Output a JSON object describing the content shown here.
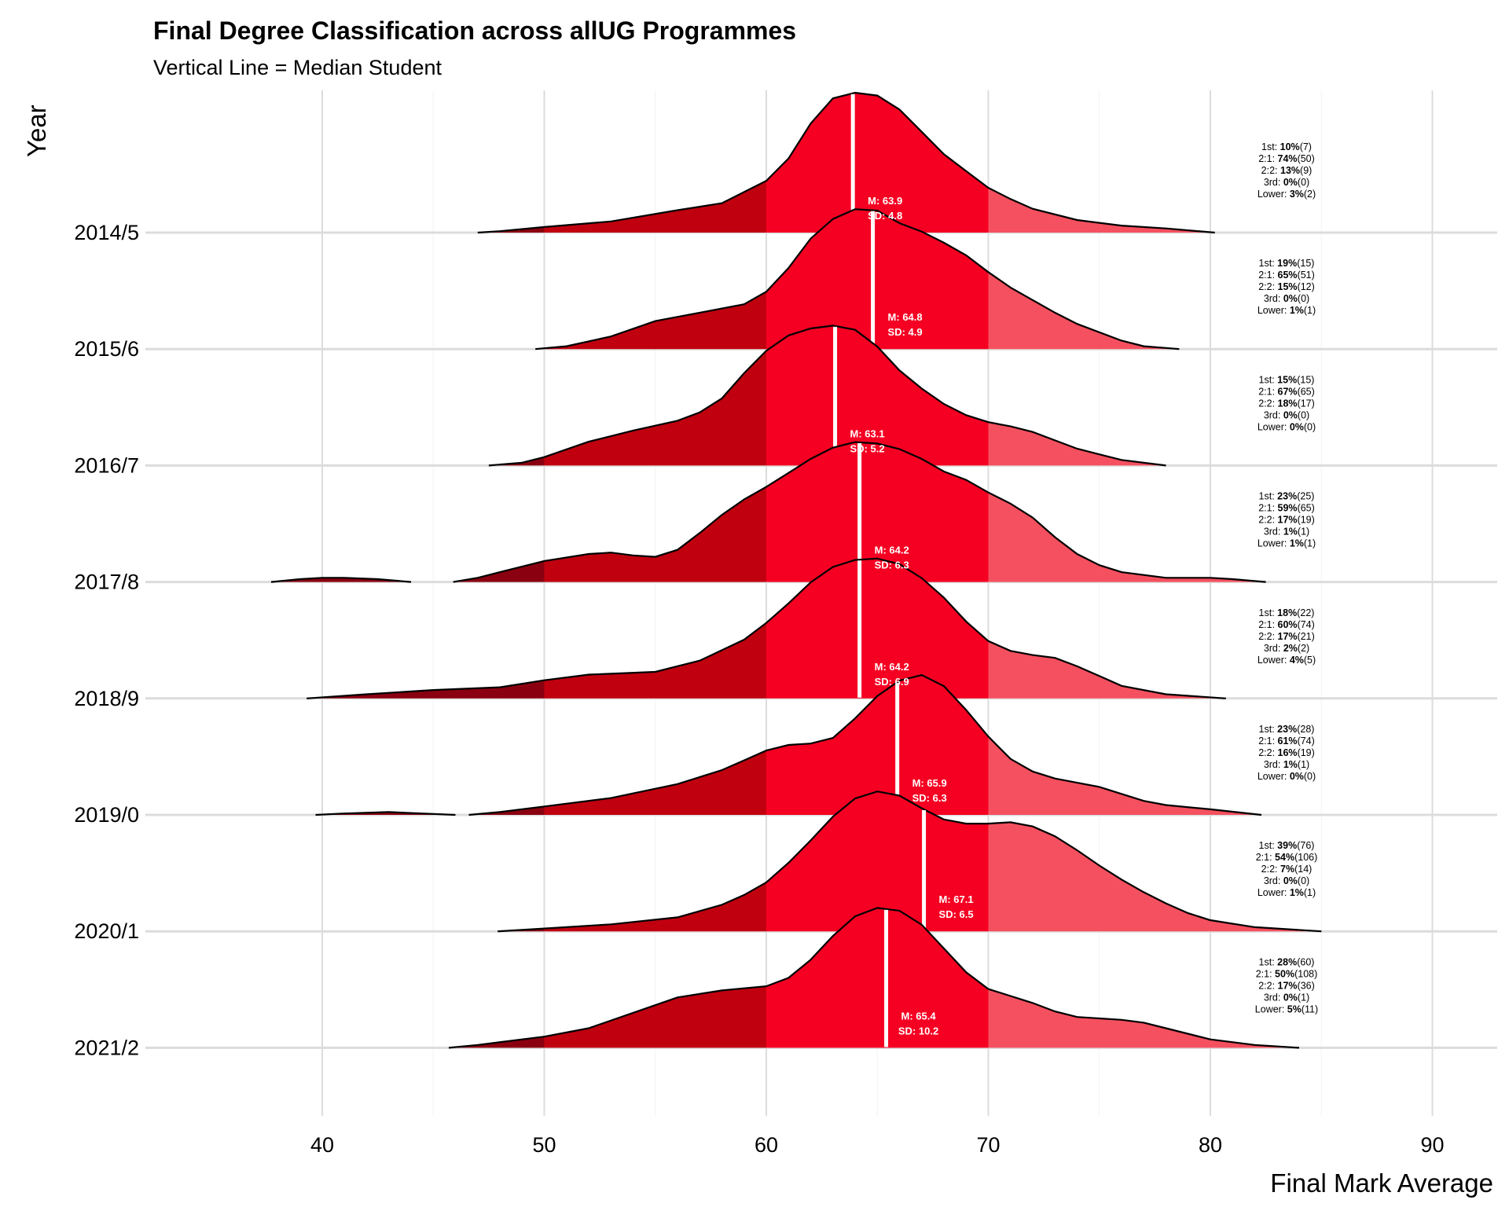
{
  "chart_data": {
    "type": "ridgeline",
    "title": "Final Degree Classification across allUG Programmes",
    "subtitle": "Vertical Line = Median Student",
    "xlabel": "Final Mark Average",
    "ylabel": "Year",
    "xlim": [
      32,
      92
    ],
    "xticks": [
      "40",
      "50",
      "60",
      "70",
      "80",
      "90"
    ],
    "grid": true,
    "band_colors": [
      "#8b0010",
      "#c1000f",
      "#f50022",
      "#f5505f"
    ],
    "band_breaks": [
      50,
      60,
      70
    ],
    "series": [
      {
        "name": "2014/5",
        "median": 63.9,
        "stats": [
          "M: 63.9",
          "SD: 4.8"
        ],
        "classes": [
          {
            "cls": "1st: ",
            "pct": "10%",
            "n": "(7)"
          },
          {
            "cls": "2:1: ",
            "pct": "74%",
            "n": "(50)"
          },
          {
            "cls": "2:2: ",
            "pct": "13%",
            "n": "(9)"
          },
          {
            "cls": "3rd: ",
            "pct": "0%",
            "n": "(0)"
          },
          {
            "cls": "Lower: ",
            "pct": "3%",
            "n": "(2)"
          }
        ],
        "density": [
          [
            47,
            0.0
          ],
          [
            48,
            0.01
          ],
          [
            50,
            0.04
          ],
          [
            53,
            0.08
          ],
          [
            56,
            0.16
          ],
          [
            58,
            0.21
          ],
          [
            60,
            0.37
          ],
          [
            61,
            0.53
          ],
          [
            62,
            0.78
          ],
          [
            63,
            0.96
          ],
          [
            64,
            1.0
          ],
          [
            65,
            0.98
          ],
          [
            66,
            0.88
          ],
          [
            67,
            0.72
          ],
          [
            68,
            0.56
          ],
          [
            69,
            0.44
          ],
          [
            70,
            0.32
          ],
          [
            71,
            0.24
          ],
          [
            72,
            0.17
          ],
          [
            74,
            0.09
          ],
          [
            76,
            0.05
          ],
          [
            78,
            0.03
          ],
          [
            80.2,
            0.0
          ]
        ]
      },
      {
        "name": "2015/6",
        "median": 64.8,
        "stats": [
          "M: 64.8",
          "SD: 4.9"
        ],
        "classes": [
          {
            "cls": "1st: ",
            "pct": "19%",
            "n": "(15)"
          },
          {
            "cls": "2:1: ",
            "pct": "65%",
            "n": "(51)"
          },
          {
            "cls": "2:2: ",
            "pct": "15%",
            "n": "(12)"
          },
          {
            "cls": "3rd: ",
            "pct": "0%",
            "n": "(0)"
          },
          {
            "cls": "Lower: ",
            "pct": "1%",
            "n": "(1)"
          }
        ],
        "density": [
          [
            49.6,
            0.0
          ],
          [
            51,
            0.02
          ],
          [
            53,
            0.09
          ],
          [
            55,
            0.2
          ],
          [
            57,
            0.26
          ],
          [
            59,
            0.32
          ],
          [
            60,
            0.41
          ],
          [
            61,
            0.58
          ],
          [
            62,
            0.79
          ],
          [
            63,
            0.93
          ],
          [
            64,
            1.0
          ],
          [
            65,
            0.99
          ],
          [
            66,
            0.9
          ],
          [
            67,
            0.84
          ],
          [
            68,
            0.76
          ],
          [
            69,
            0.67
          ],
          [
            70,
            0.55
          ],
          [
            71,
            0.44
          ],
          [
            72,
            0.35
          ],
          [
            73,
            0.26
          ],
          [
            74,
            0.18
          ],
          [
            76,
            0.06
          ],
          [
            77,
            0.02
          ],
          [
            78.6,
            0.0
          ]
        ]
      },
      {
        "name": "2016/7",
        "median": 63.1,
        "stats": [
          "M: 63.1",
          "SD: 5.2"
        ],
        "classes": [
          {
            "cls": "1st: ",
            "pct": "15%",
            "n": "(15)"
          },
          {
            "cls": "2:1: ",
            "pct": "67%",
            "n": "(65)"
          },
          {
            "cls": "2:2: ",
            "pct": "18%",
            "n": "(17)"
          },
          {
            "cls": "3rd: ",
            "pct": "0%",
            "n": "(0)"
          },
          {
            "cls": "Lower: ",
            "pct": "0%",
            "n": "(0)"
          }
        ],
        "density": [
          [
            47.5,
            0.0
          ],
          [
            49,
            0.02
          ],
          [
            50,
            0.06
          ],
          [
            52,
            0.17
          ],
          [
            54,
            0.25
          ],
          [
            56,
            0.32
          ],
          [
            57,
            0.38
          ],
          [
            58,
            0.48
          ],
          [
            59,
            0.66
          ],
          [
            60,
            0.82
          ],
          [
            61,
            0.93
          ],
          [
            62,
            0.98
          ],
          [
            63,
            1.0
          ],
          [
            64,
            0.97
          ],
          [
            65,
            0.85
          ],
          [
            66,
            0.68
          ],
          [
            67,
            0.55
          ],
          [
            68,
            0.44
          ],
          [
            69,
            0.36
          ],
          [
            70,
            0.31
          ],
          [
            71,
            0.28
          ],
          [
            72,
            0.24
          ],
          [
            73,
            0.18
          ],
          [
            74,
            0.12
          ],
          [
            76,
            0.04
          ],
          [
            78,
            0.0
          ]
        ]
      },
      {
        "name": "2017/8",
        "median": 64.2,
        "stats": [
          "M: 64.2",
          "SD: 6.3"
        ],
        "classes": [
          {
            "cls": "1st: ",
            "pct": "23%",
            "n": "(25)"
          },
          {
            "cls": "2:1: ",
            "pct": "59%",
            "n": "(65)"
          },
          {
            "cls": "2:2: ",
            "pct": "17%",
            "n": "(19)"
          },
          {
            "cls": "3rd: ",
            "pct": "1%",
            "n": "(1)"
          },
          {
            "cls": "Lower: ",
            "pct": "1%",
            "n": "(1)"
          }
        ],
        "outlier": [
          [
            37.7,
            0.0
          ],
          [
            39,
            0.02
          ],
          [
            40,
            0.03
          ],
          [
            41,
            0.03
          ],
          [
            42.5,
            0.02
          ],
          [
            44,
            0.0
          ]
        ],
        "density": [
          [
            45.9,
            0.0
          ],
          [
            47,
            0.03
          ],
          [
            48,
            0.07
          ],
          [
            50,
            0.15
          ],
          [
            52,
            0.2
          ],
          [
            53,
            0.21
          ],
          [
            54,
            0.19
          ],
          [
            55,
            0.18
          ],
          [
            56,
            0.23
          ],
          [
            57,
            0.35
          ],
          [
            58,
            0.48
          ],
          [
            59,
            0.59
          ],
          [
            60,
            0.68
          ],
          [
            61,
            0.78
          ],
          [
            62,
            0.88
          ],
          [
            63,
            0.96
          ],
          [
            64,
            1.0
          ],
          [
            65,
            0.99
          ],
          [
            66,
            0.95
          ],
          [
            67,
            0.88
          ],
          [
            68,
            0.79
          ],
          [
            69,
            0.73
          ],
          [
            70,
            0.64
          ],
          [
            71,
            0.56
          ],
          [
            72,
            0.46
          ],
          [
            73,
            0.32
          ],
          [
            74,
            0.2
          ],
          [
            75,
            0.12
          ],
          [
            76,
            0.07
          ],
          [
            78,
            0.03
          ],
          [
            80,
            0.03
          ],
          [
            81,
            0.02
          ],
          [
            82.5,
            0.0
          ]
        ]
      },
      {
        "name": "2018/9",
        "median": 64.2,
        "stats": [
          "M: 64.2",
          "SD: 6.9"
        ],
        "classes": [
          {
            "cls": "1st: ",
            "pct": "18%",
            "n": "(22)"
          },
          {
            "cls": "2:1: ",
            "pct": "60%",
            "n": "(74)"
          },
          {
            "cls": "2:2: ",
            "pct": "17%",
            "n": "(21)"
          },
          {
            "cls": "3rd: ",
            "pct": "2%",
            "n": "(2)"
          },
          {
            "cls": "Lower: ",
            "pct": "4%",
            "n": "(5)"
          }
        ],
        "density": [
          [
            39.3,
            0.0
          ],
          [
            42,
            0.03
          ],
          [
            45,
            0.06
          ],
          [
            48,
            0.08
          ],
          [
            50,
            0.13
          ],
          [
            52,
            0.17
          ],
          [
            55,
            0.19
          ],
          [
            57,
            0.27
          ],
          [
            59,
            0.42
          ],
          [
            60,
            0.54
          ],
          [
            61,
            0.68
          ],
          [
            62,
            0.83
          ],
          [
            63,
            0.94
          ],
          [
            64,
            0.99
          ],
          [
            65,
            1.0
          ],
          [
            66,
            0.96
          ],
          [
            67,
            0.86
          ],
          [
            68,
            0.72
          ],
          [
            69,
            0.55
          ],
          [
            70,
            0.41
          ],
          [
            71,
            0.34
          ],
          [
            72,
            0.31
          ],
          [
            73,
            0.29
          ],
          [
            74,
            0.23
          ],
          [
            75,
            0.16
          ],
          [
            76,
            0.09
          ],
          [
            78,
            0.03
          ],
          [
            80.7,
            0.0
          ]
        ]
      },
      {
        "name": "2019/0",
        "median": 65.9,
        "stats": [
          "M: 65.9",
          "SD: 6.3"
        ],
        "classes": [
          {
            "cls": "1st: ",
            "pct": "23%",
            "n": "(28)"
          },
          {
            "cls": "2:1: ",
            "pct": "61%",
            "n": "(74)"
          },
          {
            "cls": "2:2: ",
            "pct": "16%",
            "n": "(19)"
          },
          {
            "cls": "3rd: ",
            "pct": "1%",
            "n": "(1)"
          },
          {
            "cls": "Lower: ",
            "pct": "0%",
            "n": "(0)"
          }
        ],
        "outlier": [
          [
            39.7,
            0.0
          ],
          [
            41,
            0.01
          ],
          [
            43,
            0.02
          ],
          [
            44.5,
            0.01
          ],
          [
            46,
            0.0
          ]
        ],
        "density": [
          [
            46.6,
            0.0
          ],
          [
            48,
            0.02
          ],
          [
            50,
            0.06
          ],
          [
            53,
            0.12
          ],
          [
            56,
            0.22
          ],
          [
            58,
            0.32
          ],
          [
            59,
            0.39
          ],
          [
            60,
            0.46
          ],
          [
            61,
            0.5
          ],
          [
            62,
            0.51
          ],
          [
            63,
            0.55
          ],
          [
            64,
            0.69
          ],
          [
            65,
            0.85
          ],
          [
            66,
            0.96
          ],
          [
            67,
            1.0
          ],
          [
            68,
            0.92
          ],
          [
            69,
            0.75
          ],
          [
            70,
            0.56
          ],
          [
            71,
            0.4
          ],
          [
            72,
            0.31
          ],
          [
            73,
            0.26
          ],
          [
            74,
            0.23
          ],
          [
            75,
            0.2
          ],
          [
            76,
            0.15
          ],
          [
            77,
            0.1
          ],
          [
            78,
            0.07
          ],
          [
            80,
            0.04
          ],
          [
            82.3,
            0.0
          ]
        ]
      },
      {
        "name": "2020/1",
        "median": 67.1,
        "stats": [
          "M: 67.1",
          "SD: 6.5"
        ],
        "classes": [
          {
            "cls": "1st: ",
            "pct": "39%",
            "n": "(76)"
          },
          {
            "cls": "2:1: ",
            "pct": "54%",
            "n": "(106)"
          },
          {
            "cls": "2:2: ",
            "pct": "7%",
            "n": "(14)"
          },
          {
            "cls": "3rd: ",
            "pct": "0%",
            "n": "(0)"
          },
          {
            "cls": "Lower: ",
            "pct": "1%",
            "n": "(1)"
          }
        ],
        "density": [
          [
            47.9,
            0.0
          ],
          [
            50,
            0.02
          ],
          [
            53,
            0.05
          ],
          [
            56,
            0.1
          ],
          [
            58,
            0.19
          ],
          [
            59,
            0.26
          ],
          [
            60,
            0.35
          ],
          [
            61,
            0.49
          ],
          [
            62,
            0.65
          ],
          [
            63,
            0.82
          ],
          [
            64,
            0.95
          ],
          [
            65,
            1.0
          ],
          [
            66,
            0.97
          ],
          [
            67,
            0.88
          ],
          [
            68,
            0.8
          ],
          [
            69,
            0.77
          ],
          [
            70,
            0.77
          ],
          [
            71,
            0.78
          ],
          [
            72,
            0.75
          ],
          [
            73,
            0.68
          ],
          [
            74,
            0.58
          ],
          [
            75,
            0.47
          ],
          [
            76,
            0.37
          ],
          [
            77,
            0.28
          ],
          [
            78,
            0.2
          ],
          [
            79,
            0.13
          ],
          [
            80,
            0.08
          ],
          [
            82,
            0.03
          ],
          [
            85,
            0.0
          ]
        ]
      },
      {
        "name": "2021/2",
        "median": 65.4,
        "stats": [
          "M: 65.4",
          "SD: 10.2"
        ],
        "classes": [
          {
            "cls": "1st: ",
            "pct": "28%",
            "n": "(60)"
          },
          {
            "cls": "2:1: ",
            "pct": "50%",
            "n": "(108)"
          },
          {
            "cls": "2:2: ",
            "pct": "17%",
            "n": "(36)"
          },
          {
            "cls": "3rd: ",
            "pct": "0%",
            "n": "(1)"
          },
          {
            "cls": "Lower: ",
            "pct": "5%",
            "n": "(11)"
          }
        ],
        "density": [
          [
            45.7,
            0.0
          ],
          [
            47,
            0.02
          ],
          [
            50,
            0.08
          ],
          [
            52,
            0.14
          ],
          [
            54,
            0.25
          ],
          [
            56,
            0.36
          ],
          [
            58,
            0.41
          ],
          [
            60,
            0.44
          ],
          [
            61,
            0.5
          ],
          [
            62,
            0.63
          ],
          [
            63,
            0.8
          ],
          [
            64,
            0.94
          ],
          [
            65,
            1.0
          ],
          [
            66,
            0.98
          ],
          [
            67,
            0.88
          ],
          [
            68,
            0.71
          ],
          [
            69,
            0.54
          ],
          [
            70,
            0.42
          ],
          [
            71,
            0.37
          ],
          [
            72,
            0.32
          ],
          [
            73,
            0.26
          ],
          [
            74,
            0.22
          ],
          [
            75,
            0.21
          ],
          [
            76,
            0.2
          ],
          [
            77,
            0.18
          ],
          [
            78,
            0.14
          ],
          [
            80,
            0.06
          ],
          [
            82,
            0.02
          ],
          [
            84,
            0.0
          ]
        ]
      }
    ]
  }
}
